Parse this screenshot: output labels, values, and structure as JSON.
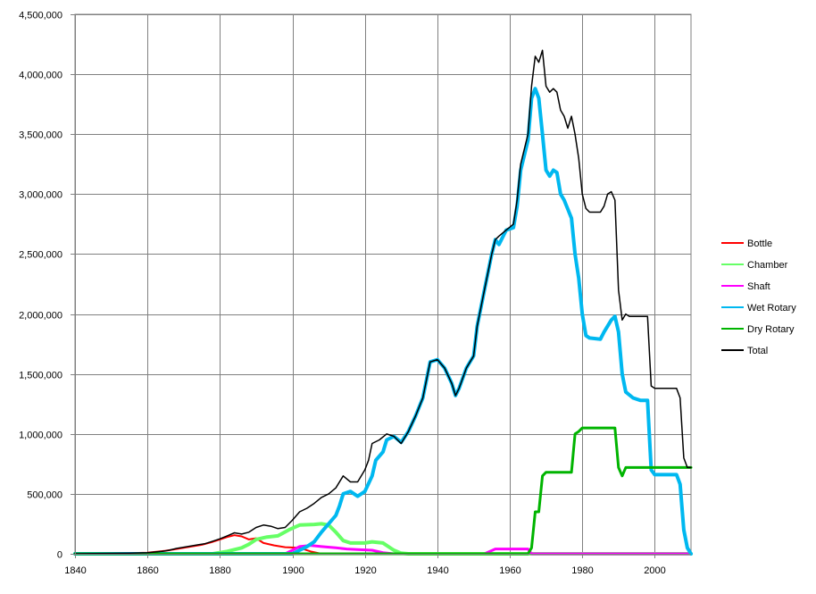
{
  "chart_data": {
    "type": "line",
    "title": "",
    "xlabel": "",
    "ylabel": "",
    "xlim": [
      1840,
      2010
    ],
    "ylim": [
      0,
      4500000
    ],
    "x_ticks": [
      1840,
      1860,
      1880,
      1900,
      1920,
      1940,
      1960,
      1980,
      2000
    ],
    "x_tick_labels": [
      "1840",
      "1860",
      "1880",
      "1900",
      "1920",
      "1940",
      "1960",
      "1980",
      "2000"
    ],
    "y_ticks": [
      0,
      500000,
      1000000,
      1500000,
      2000000,
      2500000,
      3000000,
      3500000,
      4000000,
      4500000
    ],
    "y_tick_labels": [
      "0",
      "500,000",
      "1,000,000",
      "1,500,000",
      "2,000,000",
      "2,500,000",
      "3,000,000",
      "3,500,000",
      "4,000,000",
      "4,500,000"
    ],
    "grid": true,
    "legend_position": "right",
    "series": [
      {
        "name": "Bottle",
        "color": "#ff0000",
        "width": 2,
        "points": [
          [
            1840,
            0
          ],
          [
            1855,
            5000
          ],
          [
            1860,
            10000
          ],
          [
            1865,
            25000
          ],
          [
            1870,
            50000
          ],
          [
            1875,
            75000
          ],
          [
            1878,
            100000
          ],
          [
            1880,
            120000
          ],
          [
            1882,
            140000
          ],
          [
            1884,
            155000
          ],
          [
            1886,
            145000
          ],
          [
            1888,
            120000
          ],
          [
            1890,
            130000
          ],
          [
            1892,
            90000
          ],
          [
            1895,
            70000
          ],
          [
            1898,
            55000
          ],
          [
            1902,
            50000
          ],
          [
            1905,
            20000
          ],
          [
            1908,
            0
          ],
          [
            2010,
            0
          ]
        ]
      },
      {
        "name": "Chamber",
        "color": "#66ff66",
        "width": 4,
        "points": [
          [
            1840,
            0
          ],
          [
            1878,
            0
          ],
          [
            1882,
            20000
          ],
          [
            1886,
            50000
          ],
          [
            1888,
            80000
          ],
          [
            1890,
            120000
          ],
          [
            1893,
            140000
          ],
          [
            1896,
            150000
          ],
          [
            1899,
            200000
          ],
          [
            1902,
            240000
          ],
          [
            1906,
            245000
          ],
          [
            1908,
            250000
          ],
          [
            1910,
            240000
          ],
          [
            1912,
            180000
          ],
          [
            1914,
            110000
          ],
          [
            1916,
            90000
          ],
          [
            1920,
            90000
          ],
          [
            1922,
            100000
          ],
          [
            1925,
            90000
          ],
          [
            1928,
            30000
          ],
          [
            1930,
            5000
          ],
          [
            1932,
            0
          ],
          [
            2010,
            0
          ]
        ]
      },
      {
        "name": "Shaft",
        "color": "#ff00ff",
        "width": 3,
        "points": [
          [
            1840,
            0
          ],
          [
            1898,
            0
          ],
          [
            1902,
            60000
          ],
          [
            1905,
            70000
          ],
          [
            1908,
            60000
          ],
          [
            1912,
            50000
          ],
          [
            1915,
            40000
          ],
          [
            1918,
            35000
          ],
          [
            1922,
            30000
          ],
          [
            1925,
            10000
          ],
          [
            1928,
            0
          ],
          [
            1953,
            0
          ],
          [
            1956,
            40000
          ],
          [
            1965,
            40000
          ],
          [
            1966,
            0
          ],
          [
            2010,
            0
          ]
        ]
      },
      {
        "name": "Wet Rotary",
        "color": "#00b8f0",
        "width": 4,
        "points": [
          [
            1840,
            0
          ],
          [
            1900,
            0
          ],
          [
            1902,
            30000
          ],
          [
            1904,
            60000
          ],
          [
            1906,
            100000
          ],
          [
            1908,
            180000
          ],
          [
            1910,
            250000
          ],
          [
            1912,
            320000
          ],
          [
            1913,
            400000
          ],
          [
            1914,
            500000
          ],
          [
            1916,
            520000
          ],
          [
            1918,
            480000
          ],
          [
            1920,
            520000
          ],
          [
            1922,
            650000
          ],
          [
            1923,
            780000
          ],
          [
            1925,
            850000
          ],
          [
            1926,
            950000
          ],
          [
            1928,
            980000
          ],
          [
            1930,
            930000
          ],
          [
            1932,
            1020000
          ],
          [
            1934,
            1150000
          ],
          [
            1936,
            1300000
          ],
          [
            1938,
            1600000
          ],
          [
            1940,
            1620000
          ],
          [
            1942,
            1550000
          ],
          [
            1944,
            1420000
          ],
          [
            1945,
            1320000
          ],
          [
            1946,
            1380000
          ],
          [
            1948,
            1550000
          ],
          [
            1950,
            1650000
          ],
          [
            1951,
            1900000
          ],
          [
            1953,
            2200000
          ],
          [
            1955,
            2500000
          ],
          [
            1956,
            2620000
          ],
          [
            1957,
            2580000
          ],
          [
            1959,
            2700000
          ],
          [
            1961,
            2720000
          ],
          [
            1962,
            2900000
          ],
          [
            1963,
            3200000
          ],
          [
            1965,
            3450000
          ],
          [
            1966,
            3800000
          ],
          [
            1967,
            3880000
          ],
          [
            1968,
            3800000
          ],
          [
            1969,
            3500000
          ],
          [
            1970,
            3200000
          ],
          [
            1971,
            3150000
          ],
          [
            1972,
            3200000
          ],
          [
            1973,
            3180000
          ],
          [
            1974,
            3000000
          ],
          [
            1975,
            2950000
          ],
          [
            1977,
            2800000
          ],
          [
            1978,
            2500000
          ],
          [
            1979,
            2300000
          ],
          [
            1980,
            2000000
          ],
          [
            1981,
            1820000
          ],
          [
            1982,
            1800000
          ],
          [
            1985,
            1790000
          ],
          [
            1986,
            1850000
          ],
          [
            1988,
            1950000
          ],
          [
            1989,
            1980000
          ],
          [
            1990,
            1850000
          ],
          [
            1991,
            1500000
          ],
          [
            1992,
            1350000
          ],
          [
            1994,
            1300000
          ],
          [
            1996,
            1280000
          ],
          [
            1998,
            1280000
          ],
          [
            1999,
            700000
          ],
          [
            2000,
            660000
          ],
          [
            2006,
            660000
          ],
          [
            2007,
            580000
          ],
          [
            2008,
            200000
          ],
          [
            2009,
            50000
          ],
          [
            2010,
            0
          ]
        ]
      },
      {
        "name": "Dry Rotary",
        "color": "#00b400",
        "width": 3,
        "points": [
          [
            1840,
            0
          ],
          [
            1965,
            0
          ],
          [
            1966,
            50000
          ],
          [
            1967,
            350000
          ],
          [
            1968,
            350000
          ],
          [
            1969,
            650000
          ],
          [
            1970,
            680000
          ],
          [
            1977,
            680000
          ],
          [
            1978,
            1000000
          ],
          [
            1979,
            1020000
          ],
          [
            1980,
            1050000
          ],
          [
            1989,
            1050000
          ],
          [
            1990,
            720000
          ],
          [
            1991,
            650000
          ],
          [
            1992,
            720000
          ],
          [
            2010,
            720000
          ]
        ]
      },
      {
        "name": "Total",
        "color": "#000000",
        "width": 1.5,
        "points": [
          [
            1840,
            0
          ],
          [
            1855,
            5000
          ],
          [
            1860,
            10000
          ],
          [
            1862,
            15000
          ],
          [
            1864,
            20000
          ],
          [
            1866,
            30000
          ],
          [
            1868,
            45000
          ],
          [
            1870,
            55000
          ],
          [
            1872,
            65000
          ],
          [
            1874,
            75000
          ],
          [
            1876,
            85000
          ],
          [
            1878,
            105000
          ],
          [
            1880,
            125000
          ],
          [
            1882,
            150000
          ],
          [
            1884,
            175000
          ],
          [
            1886,
            165000
          ],
          [
            1888,
            180000
          ],
          [
            1890,
            220000
          ],
          [
            1892,
            240000
          ],
          [
            1894,
            230000
          ],
          [
            1896,
            210000
          ],
          [
            1898,
            220000
          ],
          [
            1900,
            280000
          ],
          [
            1902,
            350000
          ],
          [
            1904,
            380000
          ],
          [
            1906,
            420000
          ],
          [
            1908,
            470000
          ],
          [
            1910,
            500000
          ],
          [
            1912,
            550000
          ],
          [
            1914,
            650000
          ],
          [
            1916,
            600000
          ],
          [
            1918,
            600000
          ],
          [
            1920,
            700000
          ],
          [
            1921,
            780000
          ],
          [
            1922,
            920000
          ],
          [
            1924,
            950000
          ],
          [
            1926,
            1000000
          ],
          [
            1928,
            980000
          ],
          [
            1930,
            920000
          ],
          [
            1932,
            1020000
          ],
          [
            1934,
            1150000
          ],
          [
            1936,
            1300000
          ],
          [
            1938,
            1600000
          ],
          [
            1940,
            1620000
          ],
          [
            1942,
            1550000
          ],
          [
            1944,
            1420000
          ],
          [
            1945,
            1320000
          ],
          [
            1946,
            1380000
          ],
          [
            1948,
            1550000
          ],
          [
            1950,
            1650000
          ],
          [
            1951,
            1900000
          ],
          [
            1953,
            2200000
          ],
          [
            1955,
            2500000
          ],
          [
            1956,
            2620000
          ],
          [
            1957,
            2650000
          ],
          [
            1959,
            2700000
          ],
          [
            1961,
            2750000
          ],
          [
            1962,
            2950000
          ],
          [
            1963,
            3250000
          ],
          [
            1965,
            3500000
          ],
          [
            1966,
            3900000
          ],
          [
            1967,
            4150000
          ],
          [
            1968,
            4100000
          ],
          [
            1969,
            4200000
          ],
          [
            1970,
            3900000
          ],
          [
            1971,
            3850000
          ],
          [
            1972,
            3880000
          ],
          [
            1973,
            3850000
          ],
          [
            1974,
            3700000
          ],
          [
            1975,
            3650000
          ],
          [
            1976,
            3550000
          ],
          [
            1977,
            3650000
          ],
          [
            1978,
            3500000
          ],
          [
            1979,
            3300000
          ],
          [
            1980,
            3000000
          ],
          [
            1981,
            2880000
          ],
          [
            1982,
            2850000
          ],
          [
            1985,
            2850000
          ],
          [
            1986,
            2900000
          ],
          [
            1987,
            3000000
          ],
          [
            1988,
            3020000
          ],
          [
            1989,
            2950000
          ],
          [
            1990,
            2200000
          ],
          [
            1991,
            1950000
          ],
          [
            1992,
            2000000
          ],
          [
            1993,
            1980000
          ],
          [
            1998,
            1980000
          ],
          [
            1999,
            1400000
          ],
          [
            2000,
            1380000
          ],
          [
            2006,
            1380000
          ],
          [
            2007,
            1300000
          ],
          [
            2008,
            800000
          ],
          [
            2009,
            720000
          ],
          [
            2010,
            720000
          ]
        ]
      }
    ]
  }
}
